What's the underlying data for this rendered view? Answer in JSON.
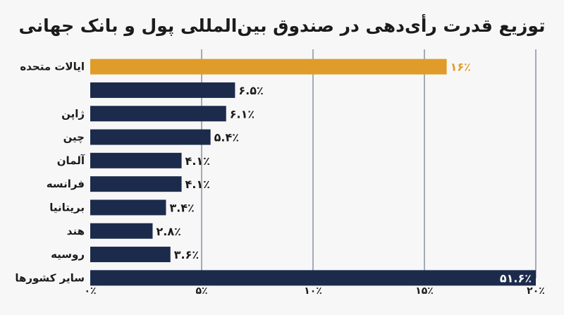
{
  "chart_data": {
    "type": "bar",
    "orientation": "horizontal",
    "title": "توزیع قدرت رأی‌دهی در صندوق بین‌المللی پول و بانک جهانی",
    "categories": [
      "ایالات متحده",
      "",
      "ژاپن",
      "چین",
      "آلمان",
      "فرانسه",
      "بریتانیا",
      "هند",
      "روسیه",
      "سایر کشورها"
    ],
    "values": [
      16,
      6.5,
      6.1,
      5.4,
      4.1,
      4.1,
      3.4,
      2.8,
      3.6,
      51.6
    ],
    "value_labels": [
      "۱۶٪",
      "۶.۵٪",
      "۶.۱٪",
      "۵.۴٪",
      "۴.۱٪",
      "۴.۱٪",
      "۳.۴٪",
      "۲.۸٪",
      "۳.۶٪",
      "۵۱.۶٪"
    ],
    "xlim": [
      0,
      20
    ],
    "xticks": [
      0,
      5,
      10,
      15,
      20
    ],
    "xtick_labels": [
      "۰٪",
      "۵٪",
      "۱۰٪",
      "۱۵٪",
      "۲۰٪"
    ],
    "grid": "vertical",
    "colors": {
      "highlight": "#e09c2a",
      "bar": "#1c2b4c",
      "grid": "#1c2b4c",
      "text": "#1b1b1b"
    },
    "highlight_index": 0
  }
}
